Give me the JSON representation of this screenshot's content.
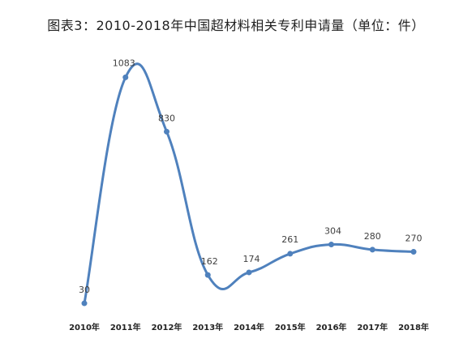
{
  "chart_data": {
    "type": "line",
    "title": "图表3：2010-2018年中国超材料相关专利申请量（单位：件）",
    "categories": [
      "2010年",
      "2011年",
      "2012年",
      "2013年",
      "2014年",
      "2015年",
      "2016年",
      "2017年",
      "2018年"
    ],
    "values": [
      30,
      1083,
      830,
      162,
      174,
      261,
      304,
      280,
      270
    ],
    "xlabel": "",
    "ylabel": "",
    "smooth": true,
    "grid": false,
    "legend": "none",
    "data_labels": true,
    "color": "#4f81bd"
  }
}
